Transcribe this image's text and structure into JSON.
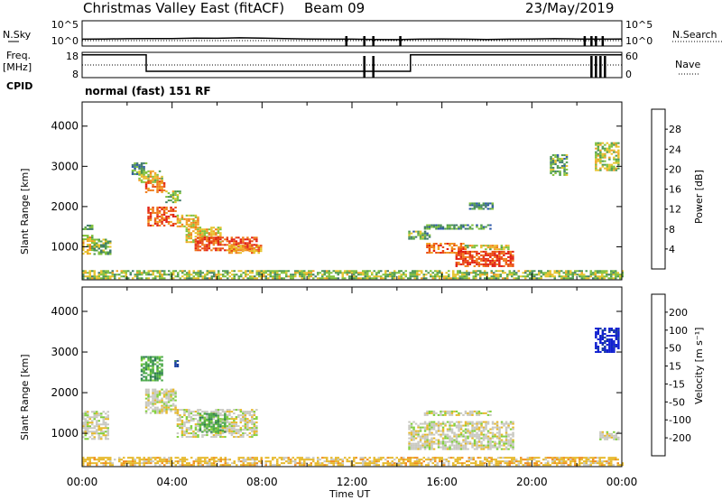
{
  "header": {
    "station": "Christmas Valley East (fitACF)",
    "beam": "Beam 09",
    "date": "23/May/2019"
  },
  "strip_labels": {
    "nsky": "N.Sky",
    "nsearch": "N.Search",
    "freq_line1": "Freq.",
    "freq_line2": "[MHz]",
    "nave": "Nave",
    "cpid": "CPID",
    "cpid_value": "normal (fast) 151 RF"
  },
  "chart_data": [
    {
      "type": "line",
      "panel": "noise",
      "xlim": [
        0,
        24
      ],
      "yticks_left": [
        "10^5",
        "10^0"
      ],
      "yticks_right": [
        "10^5",
        "10^0"
      ],
      "series": [
        {
          "name": "N.Sky",
          "x": [
            0,
            1,
            2,
            3,
            4,
            5,
            6,
            7,
            8,
            9,
            10,
            11,
            12,
            13,
            14,
            15,
            16,
            17,
            18,
            19,
            20,
            21,
            22,
            23,
            24
          ],
          "values": [
            0.6,
            0.62,
            0.64,
            0.65,
            0.66,
            0.7,
            0.68,
            0.72,
            0.7,
            0.66,
            0.62,
            0.6,
            0.6,
            0.58,
            0.56,
            0.6,
            0.62,
            0.6,
            0.58,
            0.6,
            0.62,
            0.64,
            0.62,
            0.6,
            0.62
          ]
        }
      ]
    },
    {
      "type": "line",
      "panel": "frequency",
      "xlim": [
        0,
        24
      ],
      "yticks_left": [
        "18",
        "8"
      ],
      "yticks_right": [
        "60",
        "0"
      ],
      "series": [
        {
          "name": "Freq.",
          "x": [
            0,
            2.85,
            2.85,
            14.6,
            14.6,
            24
          ],
          "values": [
            17,
            17,
            10.5,
            10.5,
            17,
            17
          ]
        },
        {
          "name": "Nave",
          "x": [
            0,
            24
          ],
          "values": [
            30,
            30
          ]
        }
      ]
    },
    {
      "type": "heatmap",
      "panel": "power",
      "ylabel": "Slant Range [km]",
      "xlim": [
        0,
        24
      ],
      "ylim": [
        180,
        4600
      ],
      "yticks": [
        1000,
        2000,
        3000,
        4000
      ],
      "colorbar": {
        "label": "Power [dB]",
        "ticks": [
          4,
          8,
          12,
          16,
          20,
          24,
          28
        ],
        "colors": [
          "#1f3fd0",
          "#2a55a8",
          "#3f7a6a",
          "#4e9a4e",
          "#7fc03a",
          "#e6c32a",
          "#f0a020",
          "#ef7a18",
          "#ea4a12",
          "#e01c10"
        ]
      },
      "regions": [
        {
          "t0": 0.0,
          "t1": 0.5,
          "r0": 1450,
          "r1": 1550,
          "level": 0.35
        },
        {
          "t0": 0.0,
          "t1": 0.5,
          "r0": 850,
          "r1": 1300,
          "level": 0.55
        },
        {
          "t0": 0.5,
          "t1": 1.3,
          "r0": 800,
          "r1": 1200,
          "level": 0.4
        },
        {
          "t0": 2.2,
          "t1": 2.9,
          "r0": 2800,
          "r1": 3100,
          "level": 0.3
        },
        {
          "t0": 2.5,
          "t1": 3.6,
          "r0": 2600,
          "r1": 2900,
          "level": 0.55
        },
        {
          "t0": 2.8,
          "t1": 3.7,
          "r0": 2350,
          "r1": 2650,
          "level": 0.85
        },
        {
          "t0": 3.7,
          "t1": 4.4,
          "r0": 2100,
          "r1": 2400,
          "level": 0.45
        },
        {
          "t0": 2.9,
          "t1": 4.2,
          "r0": 1550,
          "r1": 2000,
          "level": 0.85
        },
        {
          "t0": 4.2,
          "t1": 5.2,
          "r0": 1500,
          "r1": 1800,
          "level": 0.6
        },
        {
          "t0": 4.6,
          "t1": 6.2,
          "r0": 1100,
          "r1": 1500,
          "level": 0.6
        },
        {
          "t0": 5.0,
          "t1": 7.8,
          "r0": 900,
          "r1": 1250,
          "level": 0.9
        },
        {
          "t0": 6.5,
          "t1": 8.0,
          "r0": 850,
          "r1": 1050,
          "level": 0.7
        },
        {
          "t0": 14.5,
          "t1": 15.5,
          "r0": 1200,
          "r1": 1400,
          "level": 0.35
        },
        {
          "t0": 15.3,
          "t1": 17.0,
          "r0": 850,
          "r1": 1100,
          "level": 0.8
        },
        {
          "t0": 16.6,
          "t1": 19.2,
          "r0": 500,
          "r1": 900,
          "level": 0.92
        },
        {
          "t0": 17.0,
          "t1": 19.0,
          "r0": 950,
          "r1": 1050,
          "level": 0.55
        },
        {
          "t0": 15.2,
          "t1": 18.2,
          "r0": 1450,
          "r1": 1560,
          "level": 0.3
        },
        {
          "t0": 17.2,
          "t1": 18.3,
          "r0": 1950,
          "r1": 2100,
          "level": 0.25
        },
        {
          "t0": 22.8,
          "t1": 23.9,
          "r0": 2900,
          "r1": 3600,
          "level": 0.5
        },
        {
          "t0": 20.8,
          "t1": 21.6,
          "r0": 2800,
          "r1": 3300,
          "level": 0.35
        },
        {
          "t0": 0.0,
          "t1": 24.0,
          "r0": 200,
          "r1": 420,
          "level": 0.45
        }
      ]
    },
    {
      "type": "heatmap",
      "panel": "velocity",
      "ylabel": "Slant Range [km]",
      "xlabel": "Time UT",
      "xlim": [
        0,
        24
      ],
      "ylim": [
        180,
        4600
      ],
      "yticks": [
        1000,
        2000,
        3000,
        4000
      ],
      "xticks": [
        "00:00",
        "04:00",
        "08:00",
        "12:00",
        "16:00",
        "20:00",
        "00:00"
      ],
      "colorbar": {
        "label": "Velocity [m s⁻¹]",
        "ticks": [
          200,
          100,
          50,
          15,
          -15,
          -50,
          -100,
          -200
        ],
        "colors": [
          "#1020d0",
          "#1a3fa0",
          "#2f7a55",
          "#4aa84a",
          "#7fcf3a",
          "#c8c8c0",
          "#e6b82a",
          "#f08c1a",
          "#ec5a12",
          "#e01c10"
        ]
      },
      "regions": [
        {
          "t0": 0.0,
          "t1": 1.2,
          "r0": 850,
          "r1": 1550,
          "level": 5
        },
        {
          "t0": 2.8,
          "t1": 4.2,
          "r0": 1500,
          "r1": 2100,
          "level": 5
        },
        {
          "t0": 2.6,
          "t1": 3.6,
          "r0": 2300,
          "r1": 2900,
          "level": 3
        },
        {
          "t0": 4.1,
          "t1": 4.3,
          "r0": 2600,
          "r1": 2800,
          "level": 1
        },
        {
          "t0": 4.2,
          "t1": 7.8,
          "r0": 900,
          "r1": 1600,
          "level": 5
        },
        {
          "t0": 5.2,
          "t1": 6.4,
          "r0": 1050,
          "r1": 1500,
          "level": 3
        },
        {
          "t0": 14.5,
          "t1": 19.2,
          "r0": 600,
          "r1": 1300,
          "level": 5
        },
        {
          "t0": 15.2,
          "t1": 18.2,
          "r0": 1450,
          "r1": 1560,
          "level": 5
        },
        {
          "t0": 22.8,
          "t1": 23.9,
          "r0": 3000,
          "r1": 3600,
          "level": 0
        },
        {
          "t0": 23.0,
          "t1": 23.9,
          "r0": 850,
          "r1": 1050,
          "level": 5
        },
        {
          "t0": 0.0,
          "t1": 24.0,
          "r0": 200,
          "r1": 420,
          "level": 6
        }
      ]
    }
  ]
}
